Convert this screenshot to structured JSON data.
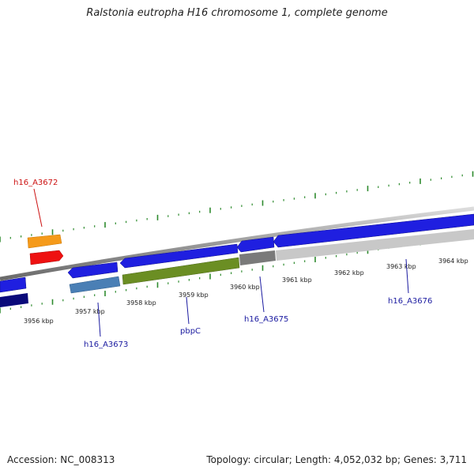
{
  "title": "Ralstonia eutropha H16 chromosome 1, complete genome",
  "footer": {
    "accession": "Accession: NC_008313",
    "summary": "Topology: circular; Length: 4,052,032 bp; Genes: 3,711"
  },
  "colors": {
    "backbone": "#8a8a8a",
    "tick": "#2e8b2e",
    "forward_gene": "#1f1fe0",
    "reverse_gene_dark": "#0a0a7a",
    "steelblue_gene": "#4a7fb5",
    "olive_gene": "#6b8e23",
    "grey_gene": "#7a7a7a",
    "lightgrey_gene": "#c8c8c8",
    "orange_gene": "#f59a1a",
    "red_gene": "#ee1111",
    "label_blue": "#1a1aa0",
    "label_red": "#cc1111"
  },
  "kbp_labels": [
    "3956 kbp",
    "3957 kbp",
    "3958 kbp",
    "3959 kbp",
    "3960 kbp",
    "3961 kbp",
    "3962 kbp",
    "3963 kbp",
    "3964 kbp"
  ],
  "gene_labels": [
    {
      "name": "h16_A3672",
      "color": "label_red"
    },
    {
      "name": "h16_A3673",
      "color": "label_blue"
    },
    {
      "name": "pbpC",
      "color": "label_blue"
    },
    {
      "name": "h16_A3675",
      "color": "label_blue"
    },
    {
      "name": "h16_A3676",
      "color": "label_blue"
    }
  ]
}
